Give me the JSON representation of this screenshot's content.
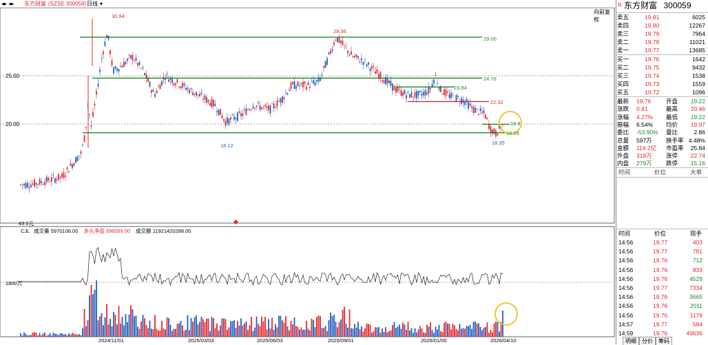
{
  "topbar": {
    "icons_text": "◂▸ ◂▸",
    "stock_label": "东方财富",
    "stock_code": "(SZSE 300059)",
    "period": "日线"
  },
  "price_chart": {
    "adjust_label": "向前复权",
    "y_labels": [
      "25.00",
      "20.00"
    ],
    "bottom_left_label": "43.5元",
    "annotations": {
      "high1": "30.94",
      "high2": "29.36",
      "low1": "18.12",
      "low2": "18.35",
      "line_2900": "29.00",
      "line_2476": "24.76",
      "line_2384": "23.84",
      "line_2232": "22.32",
      "line_1997": "19.9",
      "line_1909": "19.09"
    }
  },
  "volume_chart": {
    "legend_mode": "CJL",
    "legend_volume": "成交量 5970106.00",
    "legend_net": "多头净值 398559.00",
    "legend_amount": "成交额 11921420288.00",
    "y_label": "1800万",
    "x_labels": [
      "2024/11/01",
      "2025/03/03",
      "2025/06/03",
      "2025/09/01",
      "2026/01/05",
      "2026/04/10"
    ]
  },
  "quote": {
    "title_prefix": "R",
    "name": "东方财富",
    "code": "300059",
    "asks": [
      {
        "label": "卖五",
        "price": "19.81",
        "vol": "6025"
      },
      {
        "label": "卖四",
        "price": "19.80",
        "vol": "12267"
      },
      {
        "label": "卖三",
        "price": "19.79",
        "vol": "7964"
      },
      {
        "label": "卖二",
        "price": "19.78",
        "vol": "11021"
      },
      {
        "label": "卖一",
        "price": "19.77",
        "vol": "13685"
      }
    ],
    "bids": [
      {
        "label": "买一",
        "price": "19.76",
        "vol": "1642"
      },
      {
        "label": "买二",
        "price": "19.75",
        "vol": "9432"
      },
      {
        "label": "买三",
        "price": "19.74",
        "vol": "1538"
      },
      {
        "label": "买四",
        "price": "19.73",
        "vol": "1559"
      },
      {
        "label": "买五",
        "price": "19.72",
        "vol": "1096"
      }
    ],
    "stats": [
      {
        "l1": "最新",
        "v1": "19.76",
        "c1": "red",
        "l2": "开盘",
        "v2": "19.22",
        "c2": "green"
      },
      {
        "l1": "涨跌",
        "v1": "0.81",
        "c1": "red",
        "l2": "最高",
        "v2": "20.46",
        "c2": "red"
      },
      {
        "l1": "涨幅",
        "v1": "4.27%",
        "c1": "red",
        "l2": "最低",
        "v2": "19.22",
        "c2": "green"
      },
      {
        "l1": "振幅",
        "v1": "6.54%",
        "c1": "black",
        "l2": "均价",
        "v2": "19.97",
        "c2": "red"
      },
      {
        "l1": "委比",
        "v1": "-53.90%",
        "c1": "green",
        "l2": "量比",
        "v2": "2.86",
        "c2": "black"
      },
      {
        "l1": "总量",
        "v1": "597万",
        "c1": "black",
        "l2": "换手率",
        "v2": "4.48%",
        "c2": "black"
      },
      {
        "l1": "金额",
        "v1": "119.2亿",
        "c1": "red",
        "l2": "市盈率",
        "v2": "25.84",
        "c2": "black"
      },
      {
        "l1": "外盘",
        "v1": "318万",
        "c1": "red",
        "l2": "涨停",
        "v2": "22.74",
        "c2": "red"
      },
      {
        "l1": "内盘",
        "v1": "279万",
        "c1": "green",
        "l2": "跌停",
        "v2": "15.16",
        "c2": "green"
      }
    ],
    "mini_header": {
      "time": "时间",
      "price": "价位",
      "vol": "大单"
    },
    "ticks_header": {
      "time": "时间",
      "price": "价位",
      "vol": "现手"
    },
    "ticks": [
      {
        "time": "14:56",
        "price": "19.77",
        "vol": "403",
        "c": "red"
      },
      {
        "time": "14:56",
        "price": "19.77",
        "vol": "781",
        "c": "red"
      },
      {
        "time": "14:56",
        "price": "19.76",
        "vol": "712",
        "c": "green"
      },
      {
        "time": "14:56",
        "price": "19.76",
        "vol": "833",
        "c": "red"
      },
      {
        "time": "14:56",
        "price": "19.76",
        "vol": "4529",
        "c": "green"
      },
      {
        "time": "14:56",
        "price": "19.77",
        "vol": "7334",
        "c": "red"
      },
      {
        "time": "14:56",
        "price": "19.76",
        "vol": "3665",
        "c": "green"
      },
      {
        "time": "14:56",
        "price": "19.76",
        "vol": "2011",
        "c": "green"
      },
      {
        "time": "14:56",
        "price": "19.76",
        "vol": "1179",
        "c": "red"
      },
      {
        "time": "14:57",
        "price": "19.77",
        "vol": "584",
        "c": "red"
      },
      {
        "time": "14:59",
        "price": "19.76",
        "vol": "49636",
        "c": "red"
      }
    ],
    "tabs": [
      "明细",
      "分价",
      "筹码"
    ]
  },
  "colors": {
    "up": "#e8262a",
    "down": "#1f5fbf",
    "support_line": "#0a7a10",
    "resistance_line": "#d61f2a",
    "highlight_circle": "#f0c020"
  }
}
